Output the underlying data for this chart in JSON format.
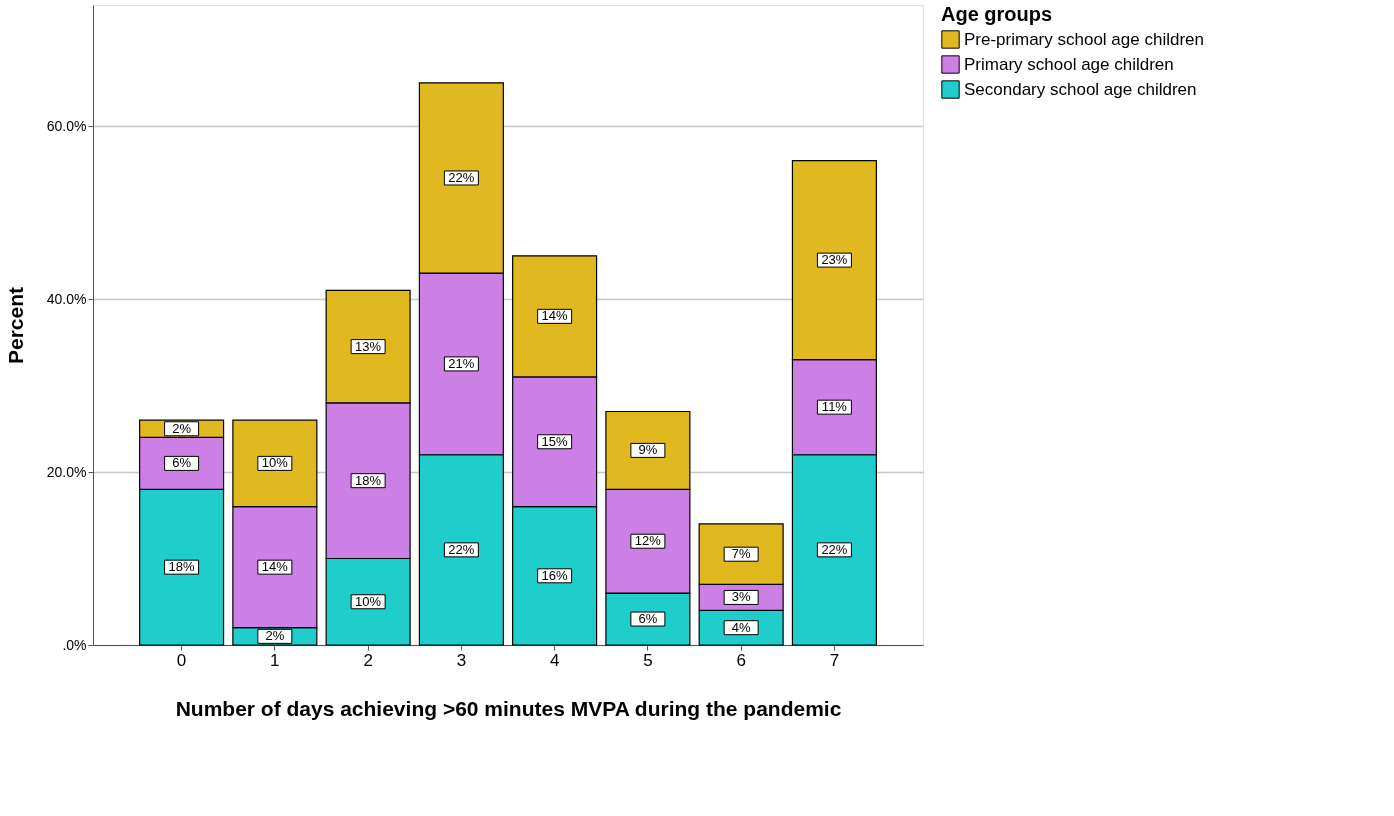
{
  "chart_data": {
    "type": "bar",
    "stacked": true,
    "xlabel": "Number of days achieving >60 minutes MVPA during the pandemic",
    "ylabel": "Percent",
    "legend_title": "Age groups",
    "legend": "top right",
    "grid": "y",
    "categories": [
      "0",
      "1",
      "2",
      "3",
      "4",
      "5",
      "6",
      "7"
    ],
    "ylim": [
      0,
      74
    ],
    "yticks": [
      {
        "value": 0,
        "label": ".0%"
      },
      {
        "value": 20,
        "label": "20.0%"
      },
      {
        "value": 40,
        "label": "40.0%"
      },
      {
        "value": 60,
        "label": "60.0%"
      }
    ],
    "series": [
      {
        "name": "Secondary school age children",
        "color": "#1fcecb",
        "values": [
          18,
          2,
          10,
          22,
          16,
          6,
          4,
          22
        ],
        "value_labels": [
          "18%",
          "2%",
          "10%",
          "22%",
          "16%",
          "6%",
          "4%",
          "22%"
        ]
      },
      {
        "name": "Primary school age children",
        "color": "#cc80e6",
        "values": [
          6,
          14,
          18,
          21,
          15,
          12,
          3,
          11
        ],
        "value_labels": [
          "6%",
          "14%",
          "18%",
          "21%",
          "15%",
          "12%",
          "3%",
          "11%"
        ]
      },
      {
        "name": "Pre-primary school age children",
        "color": "#e0b920",
        "values": [
          2,
          10,
          13,
          22,
          14,
          9,
          7,
          23
        ],
        "value_labels": [
          "2%",
          "10%",
          "13%",
          "22%",
          "14%",
          "9%",
          "7%",
          "23%"
        ]
      }
    ]
  }
}
